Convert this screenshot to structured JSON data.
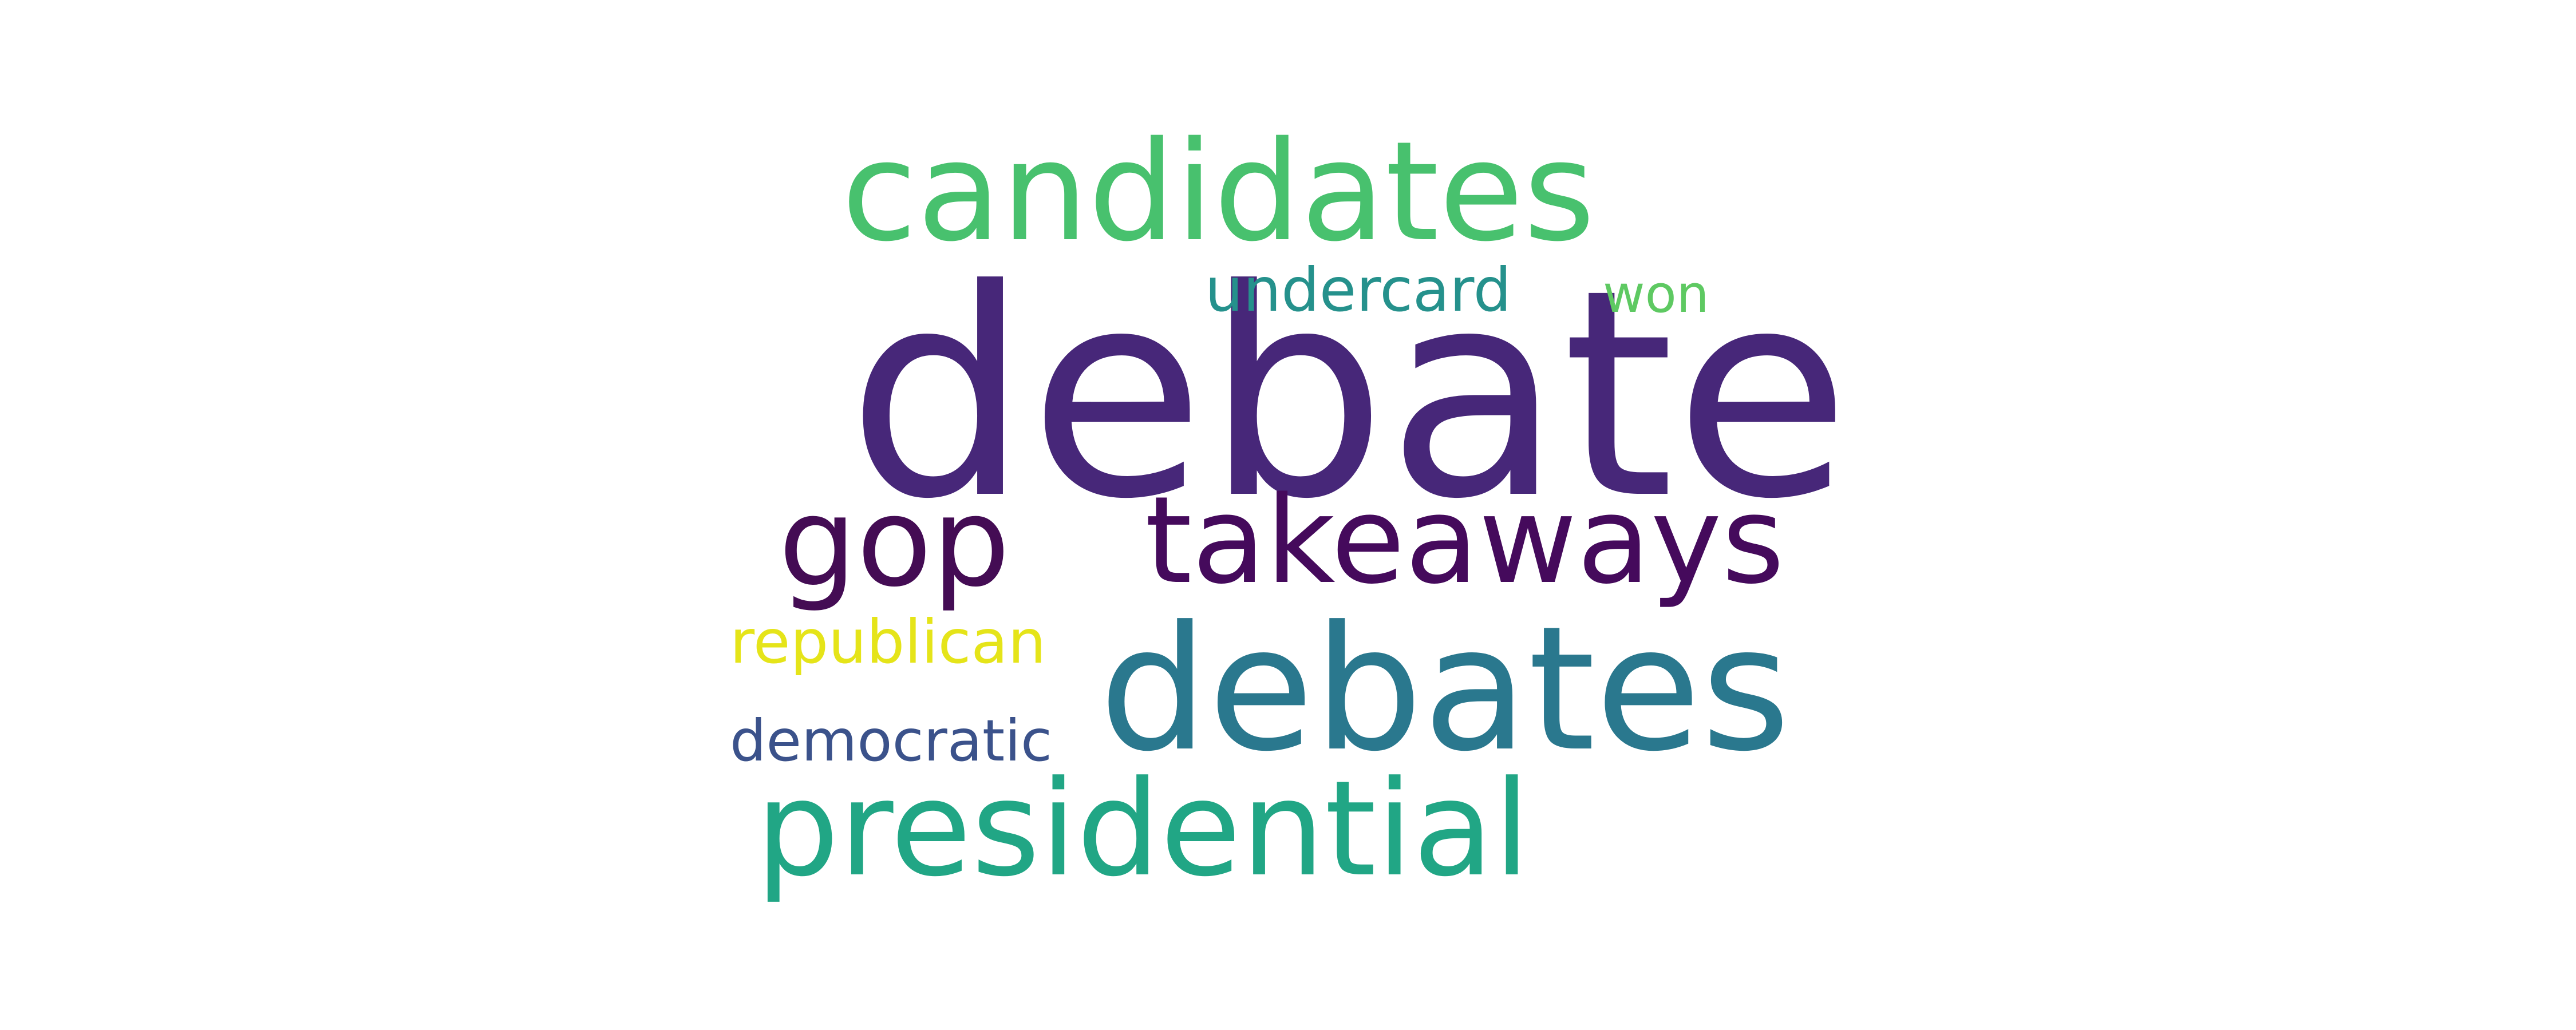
{
  "words": [
    {
      "text": "debate",
      "color": "#472779"
    },
    {
      "text": "candidates",
      "color": "#48c16e"
    },
    {
      "text": "debates",
      "color": "#2a788e"
    },
    {
      "text": "takeaways",
      "color": "#450a5c"
    },
    {
      "text": "presidential",
      "color": "#21a685"
    },
    {
      "text": "gop",
      "color": "#440c54"
    },
    {
      "text": "undercard",
      "color": "#25918c"
    },
    {
      "text": "won",
      "color": "#5ec962"
    },
    {
      "text": "republican",
      "color": "#e5e419"
    },
    {
      "text": "democratic",
      "color": "#3b528b"
    }
  ]
}
